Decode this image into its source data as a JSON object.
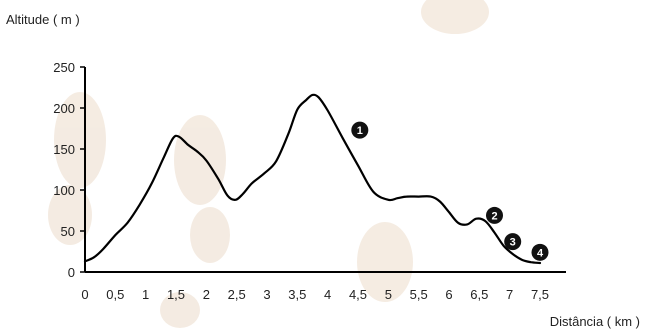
{
  "chart_data": {
    "type": "line",
    "ylabel": "Altitude ( m )",
    "xlabel": "Distância ( km )",
    "xlim": [
      0,
      7.5
    ],
    "ylim": [
      0,
      250
    ],
    "x_ticks": [
      "0",
      "0,5",
      "1",
      "1,5",
      "2",
      "2,5",
      "3",
      "3,5",
      "4",
      "4,5",
      "5",
      "5,5",
      "6",
      "6,5",
      "7",
      "7,5"
    ],
    "y_ticks": [
      "0",
      "50",
      "100",
      "150",
      "200",
      "250"
    ],
    "grid": false,
    "series": [
      {
        "x": [
          0,
          0.15,
          0.3,
          0.5,
          0.7,
          0.9,
          1.1,
          1.3,
          1.45,
          1.55,
          1.7,
          1.85,
          2.0,
          2.2,
          2.35,
          2.48,
          2.6,
          2.75,
          2.95,
          3.15,
          3.35,
          3.5,
          3.65,
          3.75,
          3.85,
          4.0,
          4.25,
          4.5,
          4.75,
          5.0,
          5.15,
          5.3,
          5.5,
          5.7,
          5.85,
          6.0,
          6.15,
          6.3,
          6.45,
          6.6,
          6.75,
          6.9,
          7.05,
          7.2,
          7.35,
          7.5
        ],
        "y": [
          13,
          18,
          28,
          45,
          60,
          82,
          108,
          140,
          163,
          165,
          155,
          147,
          136,
          113,
          93,
          88,
          95,
          108,
          120,
          135,
          168,
          198,
          210,
          216,
          213,
          197,
          163,
          130,
          98,
          88,
          90,
          92,
          92,
          92,
          86,
          73,
          60,
          58,
          65,
          62,
          48,
          32,
          22,
          15,
          12,
          11
        ]
      }
    ],
    "markers": [
      {
        "label": "1",
        "x": 4.53,
        "y": 173
      },
      {
        "label": "2",
        "x": 6.75,
        "y": 69
      },
      {
        "label": "3",
        "x": 7.05,
        "y": 37
      },
      {
        "label": "4",
        "x": 7.5,
        "y": 24
      }
    ],
    "colors": {
      "line": "#000000",
      "axis": "#000000",
      "marker": "#111111",
      "watermark": "#ecdccb"
    }
  }
}
